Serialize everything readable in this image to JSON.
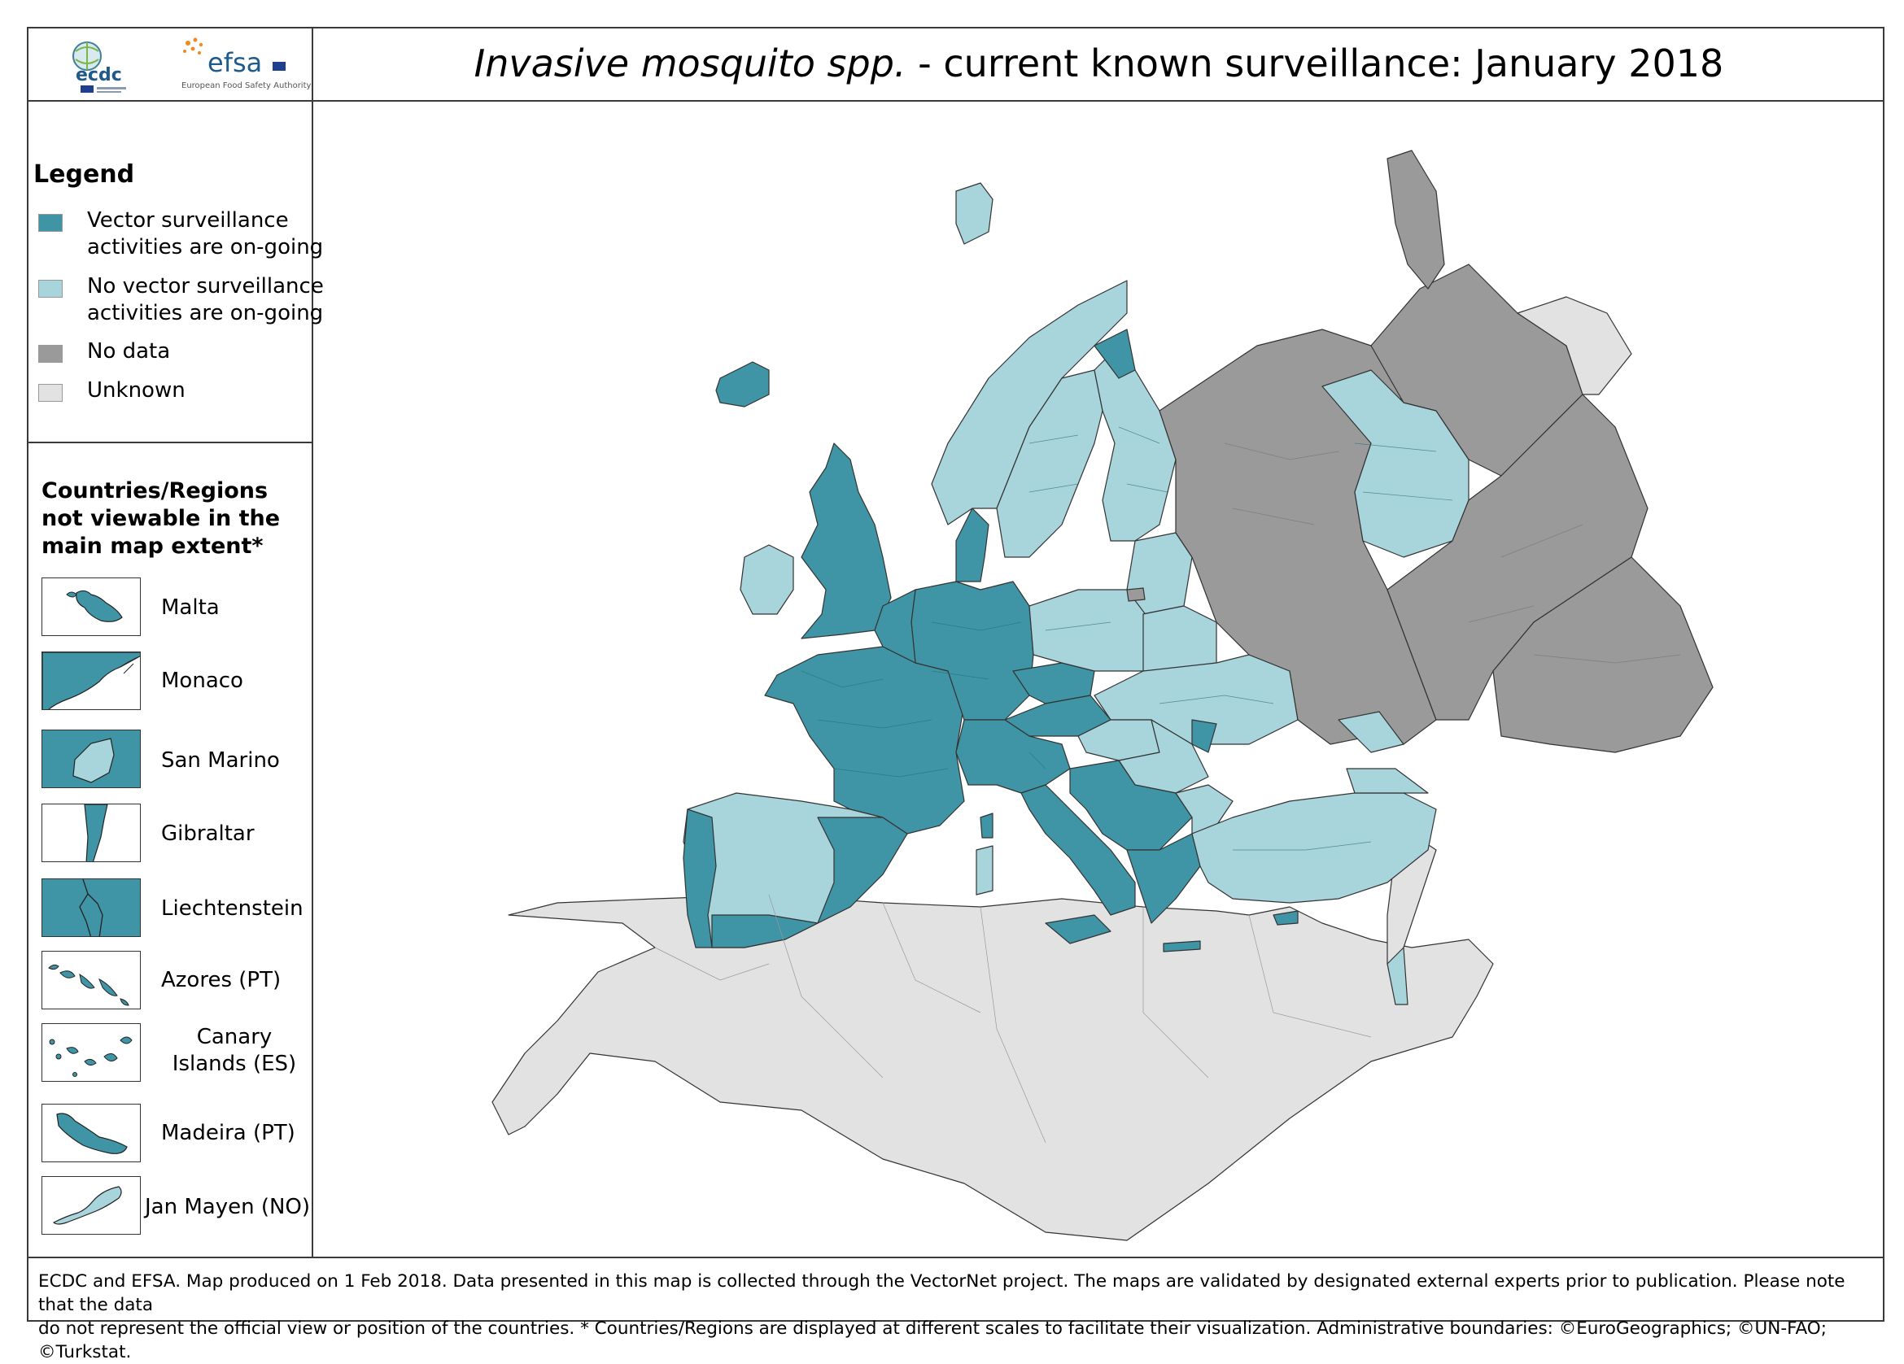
{
  "header": {
    "title_italic": "Invasive mosquito spp.",
    "title_rest": " - current known surveillance: January 2018",
    "logos": {
      "ecdc_text": "ecdc",
      "efsa_text": "efsa",
      "efsa_sub": "European Food Safety Authority"
    }
  },
  "legend": {
    "title": "Legend",
    "items": [
      {
        "label": "Vector surveillance activities are on-going",
        "color": "#3f95a5"
      },
      {
        "label": "No vector surveillance activities are on-going",
        "color": "#a8d4dc"
      },
      {
        "label": "No data",
        "color": "#9a9a9a"
      },
      {
        "label": "Unknown",
        "color": "#e2e2e2"
      }
    ]
  },
  "insets": {
    "title": "Countries/Regions not viewable in the main map extent*",
    "items": [
      {
        "label": "Malta",
        "status_color": "#3f95a5"
      },
      {
        "label": "Monaco",
        "status_color": "#3f95a5"
      },
      {
        "label": "San Marino",
        "status_color": "#a8d4dc"
      },
      {
        "label": "Gibraltar",
        "status_color": "#3f95a5"
      },
      {
        "label": "Liechtenstein",
        "status_color": "#3f95a5"
      },
      {
        "label": "Azores (PT)",
        "status_color": "#3f95a5"
      },
      {
        "label": "Canary Islands (ES)",
        "status_color": "#3f95a5"
      },
      {
        "label": "Madeira (PT)",
        "status_color": "#3f95a5"
      },
      {
        "label": "Jan Mayen (NO)",
        "status_color": "#a8d4dc"
      }
    ]
  },
  "footer": {
    "line1": "ECDC and EFSA. Map produced on 1 Feb 2018. Data presented in this map is collected through the VectorNet project. The maps are validated by designated external experts prior to publication. Please note that the data",
    "line2": "do not represent the official view or position of the countries. * Countries/Regions are displayed at different scales to facilitate their visualization. Administrative boundaries: ©EuroGeographics; ©UN-FAO; ©Turkstat."
  },
  "colors": {
    "ongoing": "#3f95a5",
    "none": "#a8d4dc",
    "nodata": "#9a9a9a",
    "unknown": "#e2e2e2",
    "border": "#333333"
  }
}
